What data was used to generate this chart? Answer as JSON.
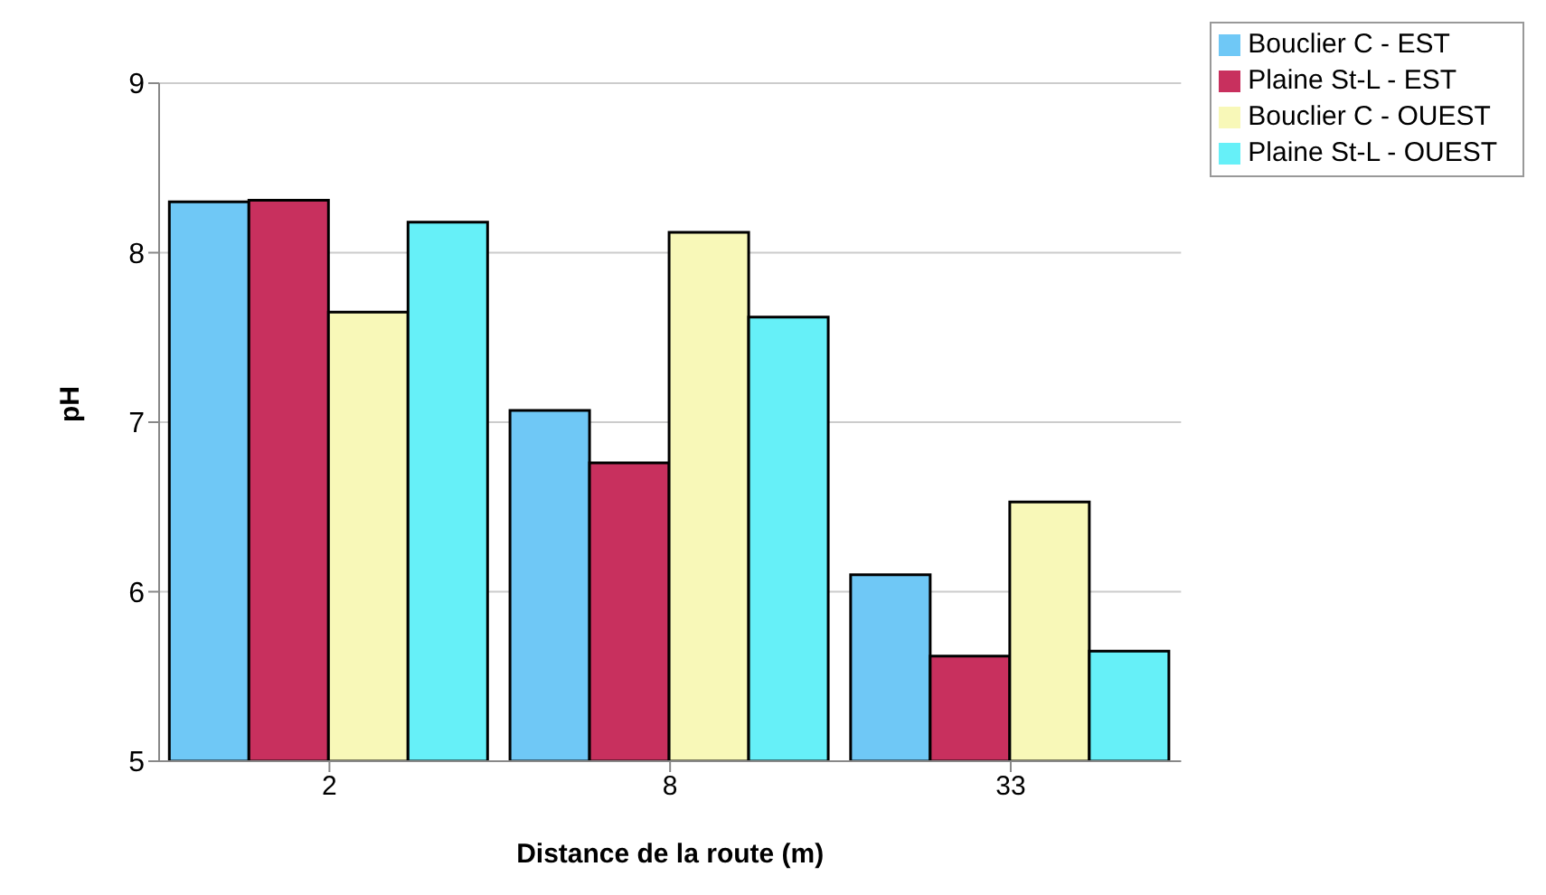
{
  "chart_data": {
    "type": "bar",
    "xlabel": "Distance de la route (m)",
    "ylabel": "pH",
    "categories": [
      "2",
      "8",
      "33"
    ],
    "series": [
      {
        "name": "Bouclier C - EST",
        "color": "#6fc8f6",
        "values": [
          8.3,
          7.07,
          6.1
        ]
      },
      {
        "name": "Plaine St-L - EST",
        "color": "#c8305e",
        "values": [
          8.31,
          6.76,
          5.62
        ]
      },
      {
        "name": "Bouclier C - OUEST",
        "color": "#f8f8b8",
        "values": [
          7.65,
          8.12,
          6.53
        ]
      },
      {
        "name": "Plaine St-L - OUEST",
        "color": "#66f0f8",
        "values": [
          8.18,
          7.62,
          5.65
        ]
      }
    ],
    "ylim": [
      5,
      9
    ],
    "yticks": [
      5,
      6,
      7,
      8,
      9
    ],
    "grid": "y",
    "legend": "top right"
  }
}
